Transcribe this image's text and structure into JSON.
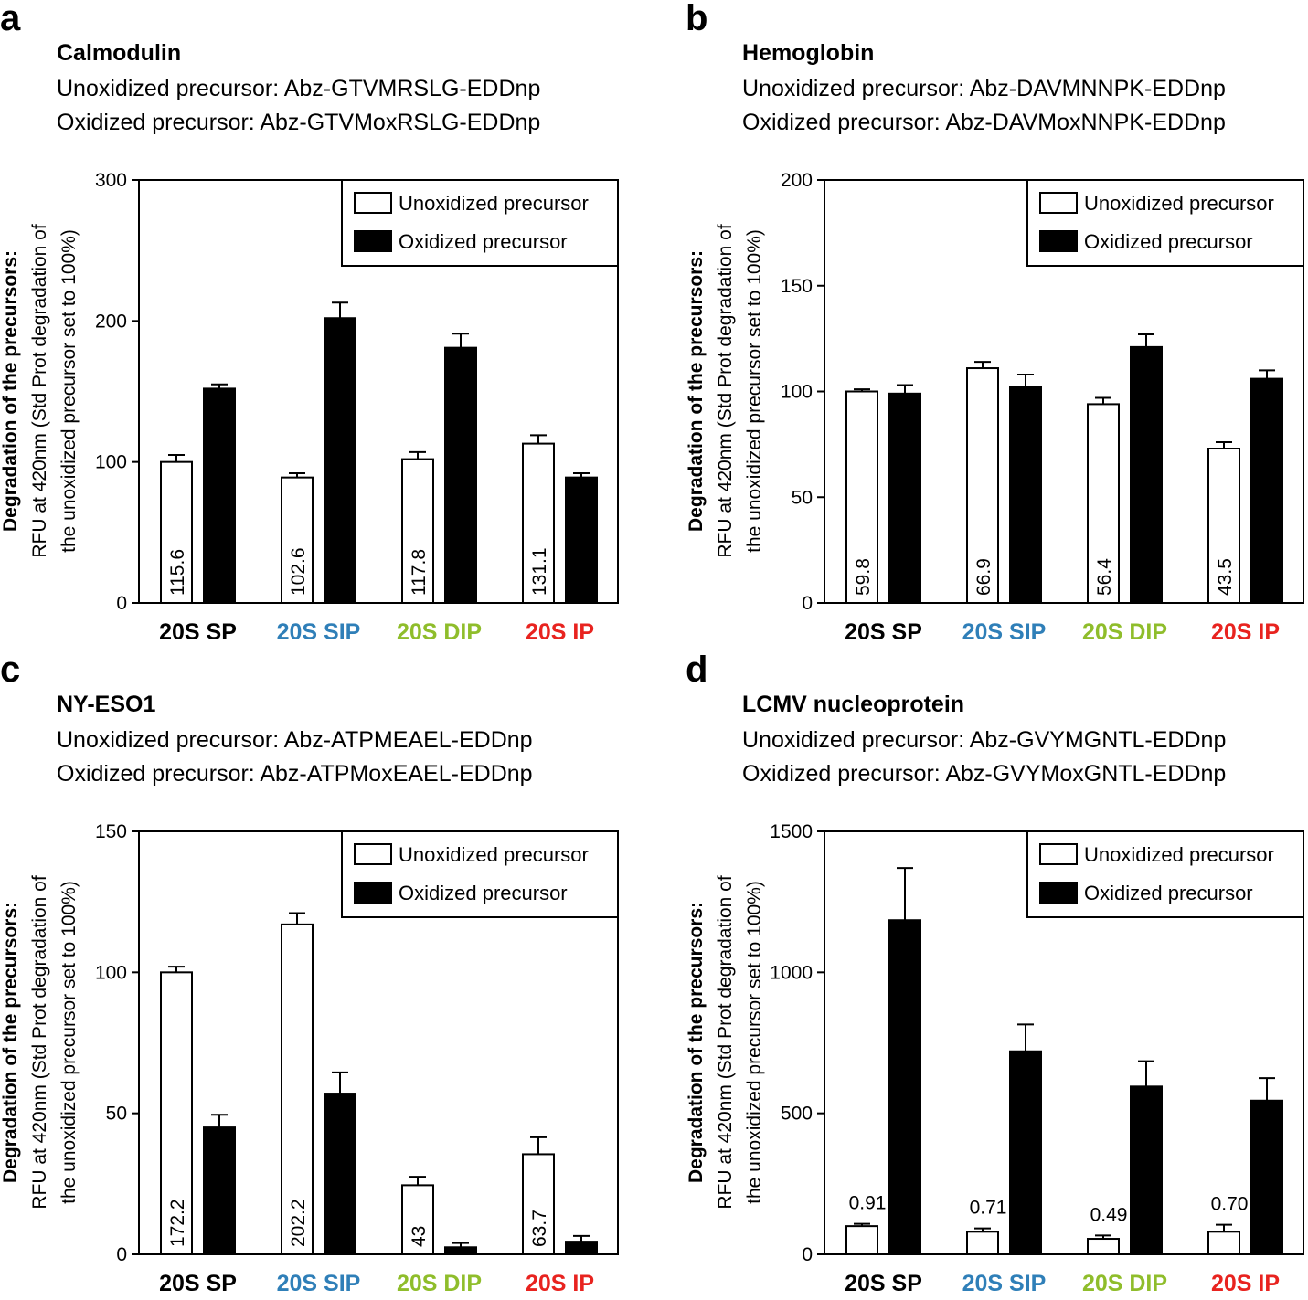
{
  "panels": [
    {
      "letter": "a",
      "protein": "Calmodulin",
      "unox_label": "Unoxidized precursor: Abz-GTVMRSLG-EDDnp",
      "ox_label": "Oxidized precursor: Abz-GTVMoxRSLG-EDDnp"
    },
    {
      "letter": "b",
      "protein": "Hemoglobin",
      "unox_label": "Unoxidized precursor: Abz-DAVMNNPK-EDDnp",
      "ox_label": "Oxidized precursor: Abz-DAVMoxNNPK-EDDnp"
    },
    {
      "letter": "c",
      "protein": "NY-ESO1",
      "unox_label": "Unoxidized precursor: Abz-ATPMEAEL-EDDnp",
      "ox_label": "Oxidized precursor: Abz-ATPMoxEAEL-EDDnp"
    },
    {
      "letter": "d",
      "protein": "LCMV nucleoprotein",
      "unox_label": "Unoxidized precursor: Abz-GVYMGNTL-EDDnp",
      "ox_label": "Oxidized precursor: Abz-GVYMoxGNTL-EDDnp"
    }
  ],
  "colors": {
    "20S SP": "#000000",
    "20S SIP": "#2f7fb8",
    "20S DIP": "#8fbd2b",
    "20S IP": "#e8231f"
  },
  "chart_data": [
    {
      "type": "bar",
      "title": "Calmodulin",
      "ylabel_bold": "Degradation of the precursors:",
      "ylabel_line2": "RFU at 420nm (Std Prot degradation of",
      "ylabel_line3": "the unoxidized precursor set to 100%)",
      "ylim": [
        0,
        300
      ],
      "yticks": [
        0,
        100,
        200,
        300
      ],
      "categories": [
        "20S SP",
        "20S SIP",
        "20S DIP",
        "20S IP"
      ],
      "legend": [
        "Unoxidized precursor",
        "Oxidized precursor"
      ],
      "legend_position": "top-right",
      "series": [
        {
          "name": "Unoxidized precursor",
          "fill": "white",
          "values": [
            100,
            89,
            102,
            113
          ],
          "errors": [
            5,
            3,
            5,
            6
          ],
          "labels": [
            "115.6",
            "102.6",
            "117.8",
            "131.1"
          ]
        },
        {
          "name": "Oxidized precursor",
          "fill": "black",
          "values": [
            152,
            202,
            181,
            89
          ],
          "errors": [
            3,
            11,
            10,
            3
          ]
        }
      ],
      "bar_label_style": "inside"
    },
    {
      "type": "bar",
      "title": "Hemoglobin",
      "ylabel_bold": "Degradation of the precursors:",
      "ylabel_line2": "RFU at 420nm (Std Prot degradation of",
      "ylabel_line3": "the unoxidized precursor set to 100%)",
      "ylim": [
        0,
        200
      ],
      "yticks": [
        0,
        50,
        100,
        150,
        200
      ],
      "categories": [
        "20S SP",
        "20S SIP",
        "20S DIP",
        "20S IP"
      ],
      "legend": [
        "Unoxidized precursor",
        "Oxidized precursor"
      ],
      "legend_position": "top-right",
      "series": [
        {
          "name": "Unoxidized precursor",
          "fill": "white",
          "values": [
            100,
            111,
            94,
            73
          ],
          "errors": [
            1,
            3,
            3,
            3
          ],
          "labels": [
            "59.8",
            "66.9",
            "56.4",
            "43.5"
          ]
        },
        {
          "name": "Oxidized precursor",
          "fill": "black",
          "values": [
            99,
            102,
            121,
            106
          ],
          "errors": [
            4,
            6,
            6,
            4
          ]
        }
      ],
      "bar_label_style": "inside"
    },
    {
      "type": "bar",
      "title": "NY-ESO1",
      "ylabel_bold": "Degradation of the precursors:",
      "ylabel_line2": "RFU at 420nm (Std Prot degradation of",
      "ylabel_line3": "the unoxidized precursor set to 100%)",
      "ylim": [
        0,
        150
      ],
      "yticks": [
        0,
        50,
        100,
        150
      ],
      "categories": [
        "20S SP",
        "20S SIP",
        "20S DIP",
        "20S IP"
      ],
      "legend": [
        "Unoxidized precursor",
        "Oxidized precursor"
      ],
      "legend_position": "top-right",
      "series": [
        {
          "name": "Unoxidized precursor",
          "fill": "white",
          "values": [
            100,
            117,
            24.5,
            35.5
          ],
          "errors": [
            2,
            4,
            3,
            6
          ],
          "labels": [
            "172.2",
            "202.2",
            "43",
            "63.7"
          ]
        },
        {
          "name": "Oxidized precursor",
          "fill": "black",
          "values": [
            45,
            57,
            2.5,
            4.5
          ],
          "errors": [
            4.5,
            7.5,
            1.5,
            2
          ]
        }
      ],
      "bar_label_style": "inside"
    },
    {
      "type": "bar",
      "title": "LCMV nucleoprotein",
      "ylabel_bold": "Degradation of the precursors:",
      "ylabel_line2": "RFU at 420nm (Std Prot degradation of",
      "ylabel_line3": "the unoxidized precursor set to 100%)",
      "ylim": [
        0,
        1500
      ],
      "yticks": [
        0,
        500,
        1000,
        1500
      ],
      "categories": [
        "20S SP",
        "20S SIP",
        "20S DIP",
        "20S IP"
      ],
      "legend": [
        "Unoxidized precursor",
        "Oxidized precursor"
      ],
      "legend_position": "top-right",
      "series": [
        {
          "name": "Unoxidized precursor",
          "fill": "white",
          "values": [
            100,
            80,
            55,
            80
          ],
          "errors": [
            8,
            12,
            12,
            25
          ],
          "labels": [
            "0.91",
            "0.71",
            "0.49",
            "0.70"
          ]
        },
        {
          "name": "Oxidized precursor",
          "fill": "black",
          "values": [
            1185,
            720,
            595,
            545
          ],
          "errors": [
            185,
            95,
            90,
            80
          ]
        }
      ],
      "bar_label_style": "above"
    }
  ]
}
